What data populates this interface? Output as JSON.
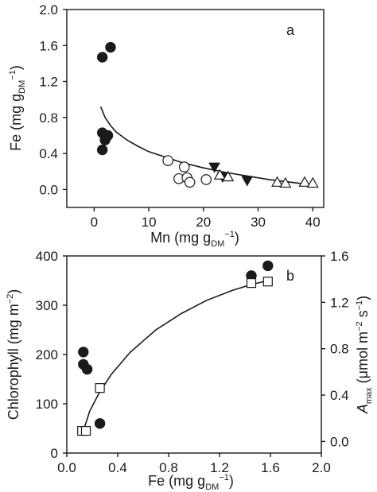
{
  "chart_data": [
    {
      "panel": "a",
      "type": "scatter",
      "xlabel": {
        "main": "Mn (mg g",
        "sub": "DM",
        "sup": "−1",
        "close": ")"
      },
      "ylabel": {
        "main": "Fe (mg g",
        "sub": "DM",
        "sup": "−1",
        "close": ")"
      },
      "xlim": [
        -5,
        42
      ],
      "ylim": [
        -0.2,
        2.0
      ],
      "xticks": [
        0,
        10,
        20,
        30,
        40
      ],
      "xtick_labels": [
        "0",
        "10",
        "20",
        "30",
        "40"
      ],
      "yticks": [
        0.0,
        0.4,
        0.8,
        1.2,
        1.6,
        2.0
      ],
      "ytick_labels": [
        "0.0",
        "0.4",
        "0.8",
        "1.2",
        "1.6",
        "2.0"
      ],
      "series": [
        {
          "marker": "filled-circle",
          "points": [
            [
              1.5,
              1.47
            ],
            [
              3.0,
              1.58
            ],
            [
              1.5,
              0.63
            ],
            [
              2.5,
              0.6
            ],
            [
              2.0,
              0.55
            ],
            [
              1.5,
              0.44
            ]
          ]
        },
        {
          "marker": "open-circle",
          "points": [
            [
              13.5,
              0.32
            ],
            [
              15.5,
              0.12
            ],
            [
              16.5,
              0.25
            ],
            [
              17.0,
              0.13
            ],
            [
              17.5,
              0.08
            ],
            [
              20.5,
              0.11
            ]
          ]
        },
        {
          "marker": "filled-triangle-down",
          "points": [
            [
              22.0,
              0.25
            ],
            [
              23.5,
              0.14
            ],
            [
              28.0,
              0.1
            ]
          ]
        },
        {
          "marker": "open-triangle-up",
          "points": [
            [
              23.0,
              0.16
            ],
            [
              24.5,
              0.14
            ],
            [
              33.5,
              0.08
            ],
            [
              35.0,
              0.07
            ],
            [
              38.5,
              0.08
            ],
            [
              40.0,
              0.07
            ]
          ]
        }
      ],
      "fit": {
        "x": [
          1.2,
          2,
          3,
          4,
          6,
          8,
          10,
          13,
          16,
          20,
          24,
          28,
          32,
          36,
          40
        ],
        "y": [
          0.92,
          0.8,
          0.71,
          0.64,
          0.55,
          0.48,
          0.42,
          0.36,
          0.3,
          0.24,
          0.19,
          0.15,
          0.11,
          0.08,
          0.05
        ]
      }
    },
    {
      "panel": "b",
      "type": "scatter",
      "xlabel": {
        "main": "Fe (mg g",
        "sub": "DM",
        "sup": "−1",
        "close": ")"
      },
      "ylabel": {
        "main": "Chlorophyll (mg m",
        "sup": "−2",
        "close": ")"
      },
      "y2label": {
        "main": "A",
        "sub": "max",
        "rest": " (μmol m",
        "sup": "−2",
        "mid": " s",
        "sup2": "−1",
        "close": ")"
      },
      "xlim": [
        0.0,
        2.0
      ],
      "ylim": [
        0,
        400
      ],
      "y2lim": [
        -0.1,
        1.6
      ],
      "xticks": [
        0.0,
        0.4,
        0.8,
        1.2,
        1.6,
        2.0
      ],
      "xtick_labels": [
        "0.0",
        "0.4",
        "0.8",
        "1.2",
        "1.6",
        "2.0"
      ],
      "yticks": [
        0,
        100,
        200,
        300,
        400
      ],
      "ytick_labels": [
        "0",
        "100",
        "200",
        "300",
        "400"
      ],
      "y2ticks": [
        0.0,
        0.4,
        0.8,
        1.2,
        1.6
      ],
      "y2tick_labels": [
        "0.0",
        "0.4",
        "0.8",
        "1.2",
        "1.6"
      ],
      "series": [
        {
          "marker": "filled-circle",
          "axis": "left",
          "points": [
            [
              0.13,
              205
            ],
            [
              0.13,
              180
            ],
            [
              0.16,
              170
            ],
            [
              0.26,
              60
            ],
            [
              1.45,
              360
            ],
            [
              1.58,
              380
            ]
          ]
        },
        {
          "marker": "open-square",
          "axis": "left",
          "points": [
            [
              0.12,
              45
            ],
            [
              0.15,
              45
            ],
            [
              0.26,
              132
            ],
            [
              1.45,
              345
            ],
            [
              1.58,
              348
            ]
          ]
        }
      ],
      "fit": {
        "x": [
          0.13,
          0.18,
          0.25,
          0.35,
          0.5,
          0.7,
          0.9,
          1.1,
          1.3,
          1.45,
          1.58
        ],
        "y": [
          45,
          85,
          120,
          160,
          205,
          250,
          283,
          310,
          330,
          342,
          350
        ]
      }
    }
  ]
}
